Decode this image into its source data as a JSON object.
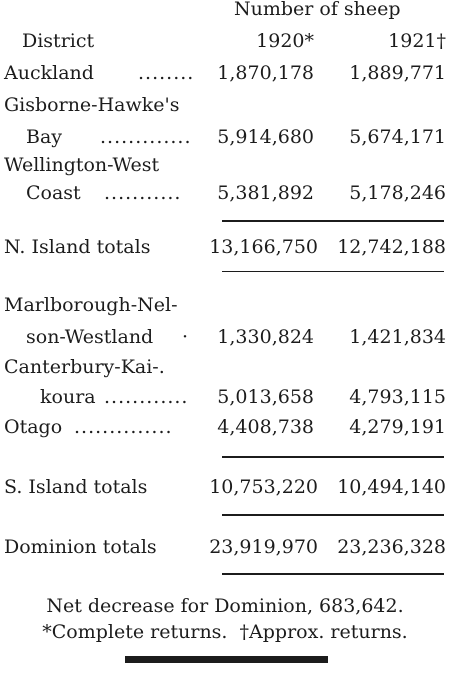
{
  "header": {
    "group_label": "Number of sheep",
    "district_label": "District",
    "col1_label": "1920*",
    "col2_label": "1921†"
  },
  "north": {
    "rows": [
      {
        "name": [
          "Auckland"
        ],
        "dots": "........",
        "v1920": "1,870,178",
        "v1921": "1,889,771"
      },
      {
        "name": [
          "Gisborne-Hawke's",
          "Bay"
        ],
        "dots": ".............",
        "v1920": "5,914,680",
        "v1921": "5,674,171"
      },
      {
        "name": [
          "Wellington-West",
          "Coast"
        ],
        "dots": "...........",
        "v1920": "5,381,892",
        "v1921": "5,178,246"
      }
    ],
    "total_label": "N. Island totals",
    "total_1920": "13,166,750",
    "total_1921": "12,742,188"
  },
  "south": {
    "rows": [
      {
        "name": [
          "Marlborough-Nel-",
          "son-Westland"
        ],
        "dots": "·",
        "v1920": "1,330,824",
        "v1921": "1,421,834"
      },
      {
        "name": [
          "Canterbury-Kai-.",
          "koura"
        ],
        "dots": "............",
        "v1920": "5,013,658",
        "v1921": "4,793,115"
      },
      {
        "name": [
          "Otago"
        ],
        "dots": "..............",
        "v1920": "4,408,738",
        "v1921": "4,279,191"
      }
    ],
    "total_label": "S. Island totals",
    "total_1920": "10,753,220",
    "total_1921": "10,494,140"
  },
  "dominion": {
    "total_label": "Dominion totals",
    "total_1920": "23,919,970",
    "total_1921": "23,236,328"
  },
  "footer": {
    "net_decrease": "Net decrease for Dominion, 683,642.",
    "notes": "*Complete returns.  †Approx. returns."
  }
}
